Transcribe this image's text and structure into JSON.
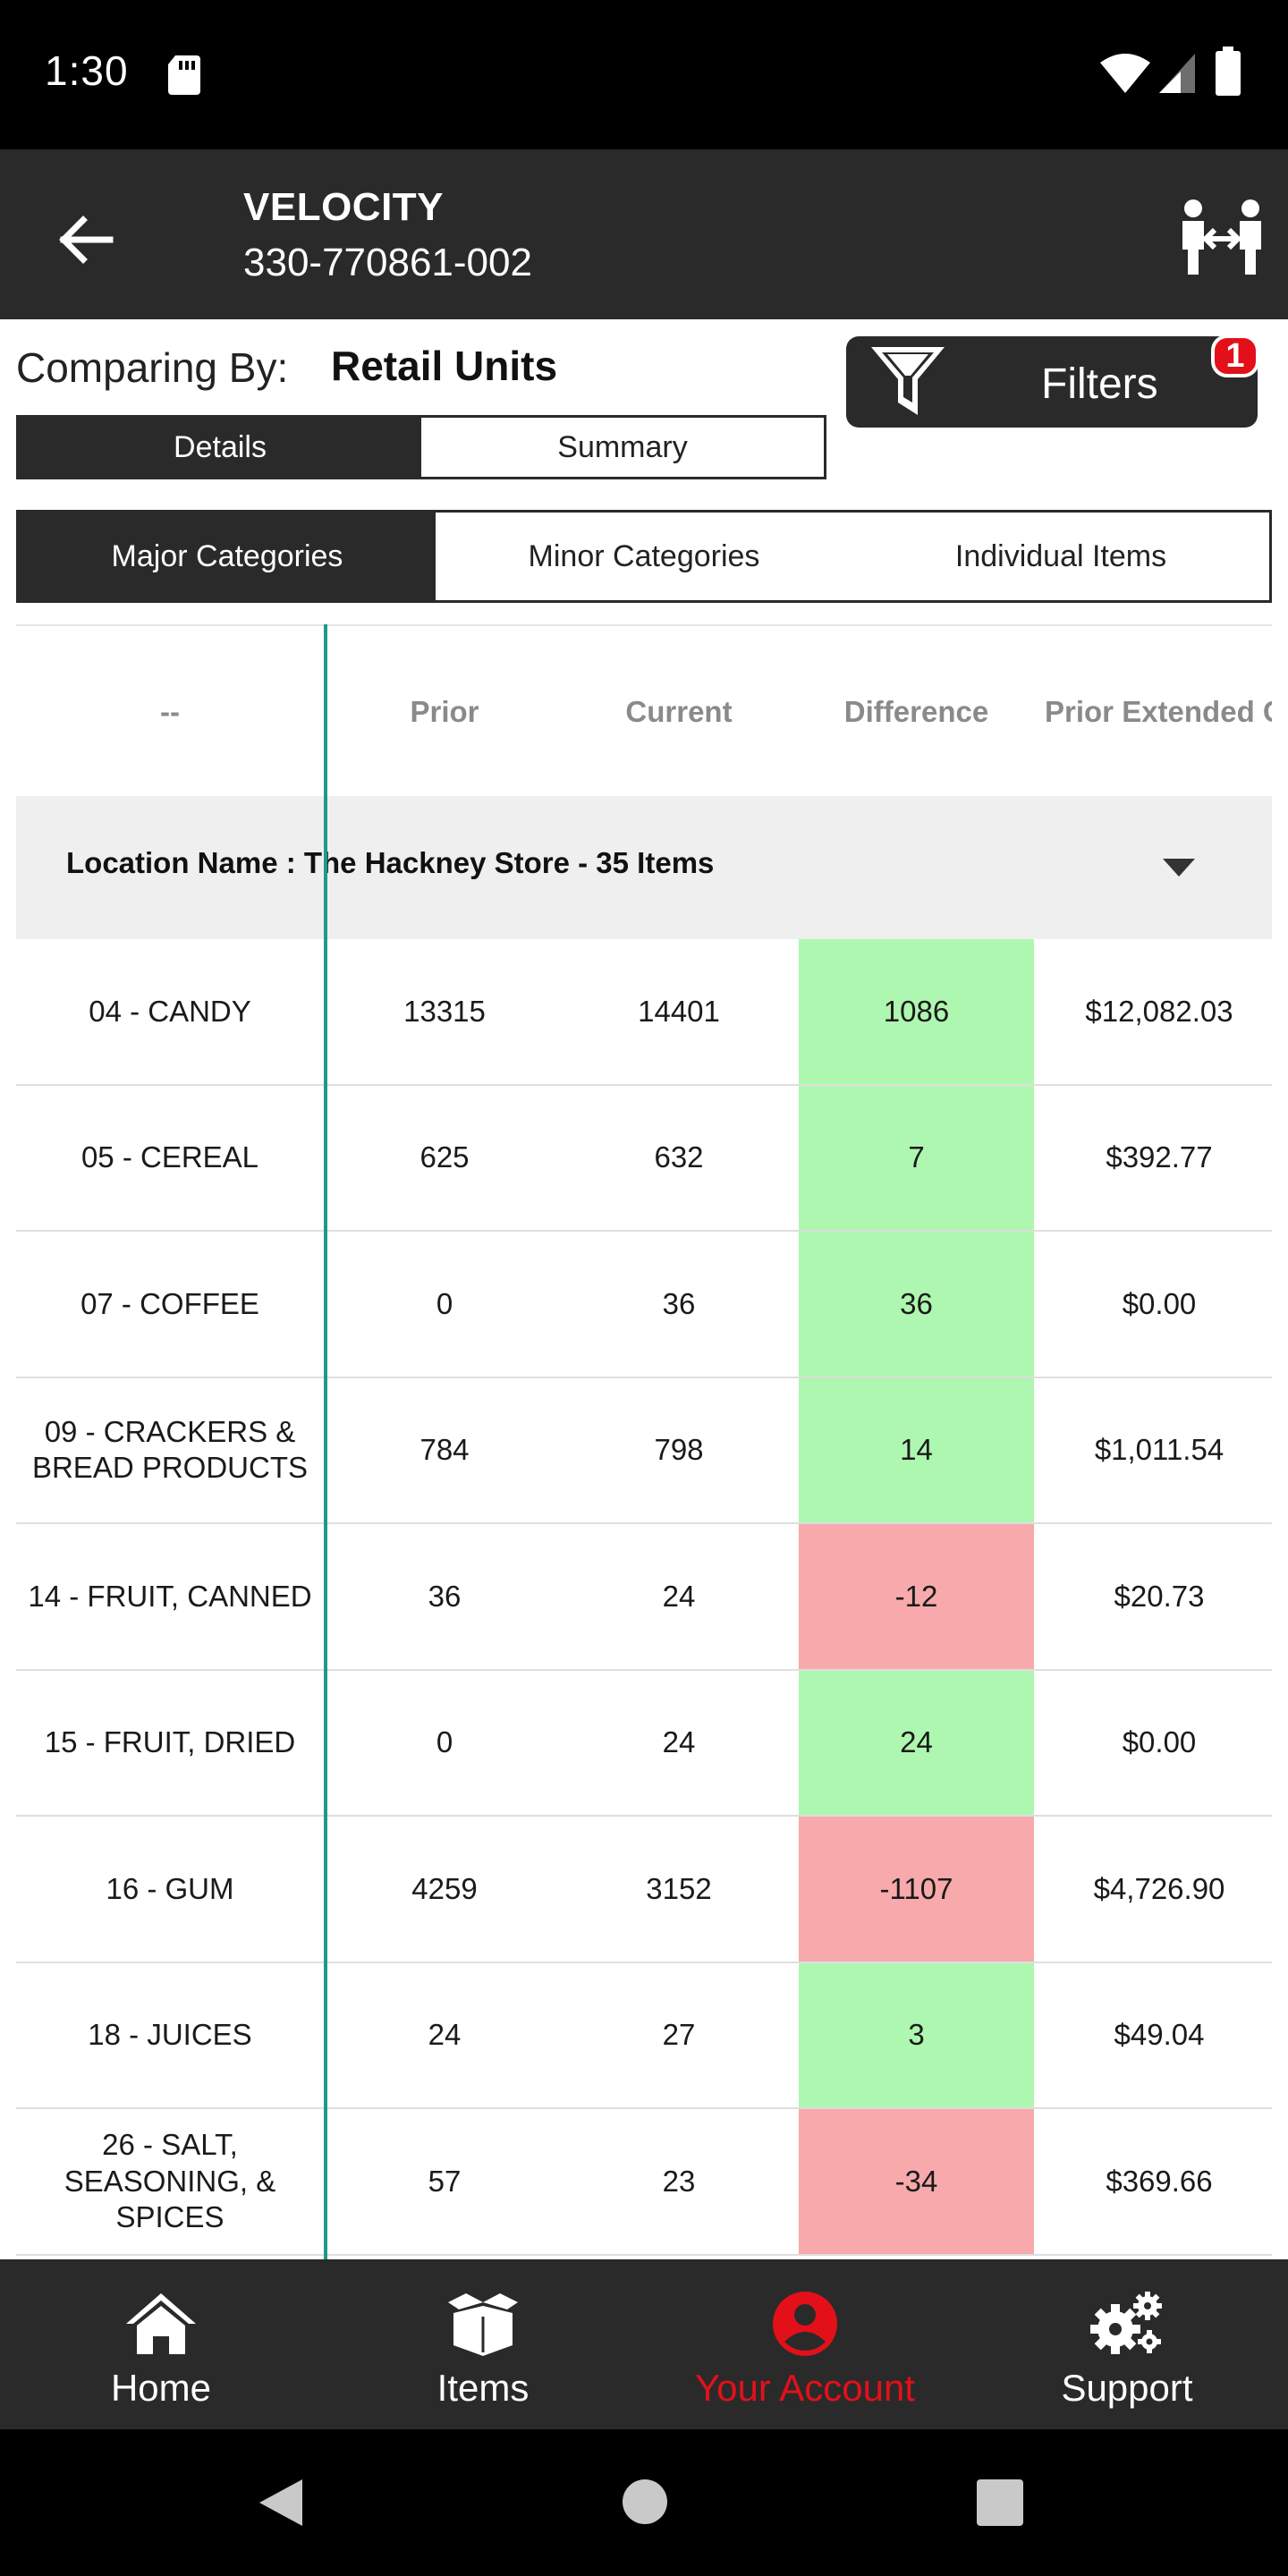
{
  "status_bar": {
    "time": "1:30",
    "icons": [
      "sd-card-icon",
      "wifi-icon",
      "signal-icon",
      "battery-icon"
    ]
  },
  "header": {
    "title": "VELOCITY",
    "subtitle": "330-770861-002",
    "back_icon": "arrow-left-icon",
    "action_icon": "compare-users-icon"
  },
  "compare": {
    "label": "Comparing By:",
    "value": "Retail Units"
  },
  "filters": {
    "label": "Filters",
    "badge": "1",
    "icon": "funnel-icon"
  },
  "view_toggle": {
    "details": "Details",
    "summary": "Summary",
    "selected": "Details"
  },
  "category_tabs": {
    "tabs": [
      "Major Categories",
      "Minor Categories",
      "Individual Items"
    ],
    "selected": "Major Categories"
  },
  "table": {
    "columns": [
      "--",
      "Prior",
      "Current",
      "Difference",
      "Prior Extended C"
    ],
    "group_label": "Location Name : The Hackney Store - 35 Items",
    "rows": [
      {
        "name": "04 - CANDY",
        "prior": "13315",
        "current": "14401",
        "difference": "1086",
        "prior_extended": "$12,082.03",
        "trend": "positive"
      },
      {
        "name": "05 - CEREAL",
        "prior": "625",
        "current": "632",
        "difference": "7",
        "prior_extended": "$392.77",
        "trend": "positive"
      },
      {
        "name": "07 - COFFEE",
        "prior": "0",
        "current": "36",
        "difference": "36",
        "prior_extended": "$0.00",
        "trend": "positive"
      },
      {
        "name": "09 - CRACKERS & BREAD PRODUCTS",
        "prior": "784",
        "current": "798",
        "difference": "14",
        "prior_extended": "$1,011.54",
        "trend": "positive"
      },
      {
        "name": "14 - FRUIT, CANNED",
        "prior": "36",
        "current": "24",
        "difference": "-12",
        "prior_extended": "$20.73",
        "trend": "negative"
      },
      {
        "name": "15 - FRUIT, DRIED",
        "prior": "0",
        "current": "24",
        "difference": "24",
        "prior_extended": "$0.00",
        "trend": "positive"
      },
      {
        "name": "16 - GUM",
        "prior": "4259",
        "current": "3152",
        "difference": "-1107",
        "prior_extended": "$4,726.90",
        "trend": "negative"
      },
      {
        "name": "18 - JUICES",
        "prior": "24",
        "current": "27",
        "difference": "3",
        "prior_extended": "$49.04",
        "trend": "positive"
      },
      {
        "name": "26 - SALT, SEASONING, & SPICES",
        "prior": "57",
        "current": "23",
        "difference": "-34",
        "prior_extended": "$369.66",
        "trend": "negative"
      }
    ]
  },
  "bottom_nav": {
    "items": [
      {
        "label": "Home",
        "icon": "home-icon"
      },
      {
        "label": "Items",
        "icon": "box-icon"
      },
      {
        "label": "Your Account",
        "icon": "account-icon"
      },
      {
        "label": "Support",
        "icon": "gears-icon"
      }
    ],
    "selected": "Your Account"
  },
  "colors": {
    "header_bg": "#2a2a2a",
    "accent_red": "#e3101a",
    "positive": "#aef7b0",
    "negative": "#f7a9ac",
    "divider_teal": "#1e9a8a"
  }
}
